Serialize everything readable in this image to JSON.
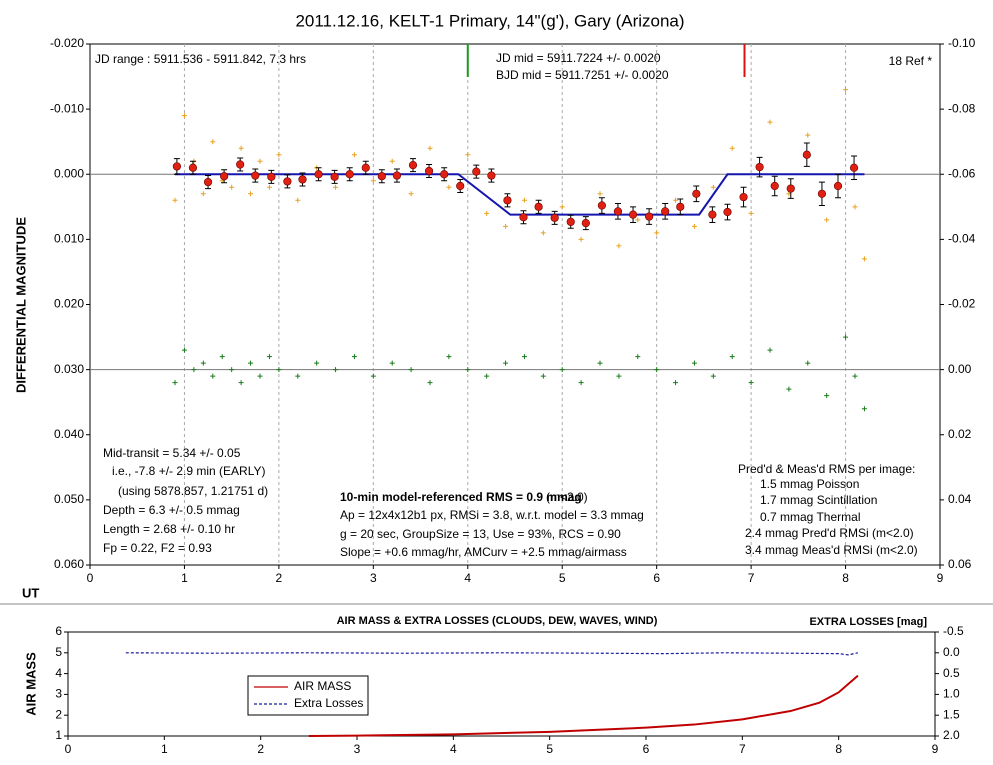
{
  "chart_data": [
    {
      "type": "scatter",
      "title": "2011.12.16, KELT-1 Primary, 14\"(g'), Gary (Arizona)",
      "ylabel": "DIFFERENTIAL MAGNITUDE",
      "xlabel": "UT",
      "xlim": [
        0,
        9
      ],
      "xticks": [
        0,
        1,
        2,
        3,
        4,
        5,
        6,
        7,
        8,
        9
      ],
      "ylim": [
        -0.02,
        0.06
      ],
      "y_inverted": true,
      "yticks": [
        {
          "value": -0.02,
          "label": "-0.020"
        },
        {
          "value": -0.01,
          "label": "-0.010"
        },
        {
          "value": 0,
          "label": "0.000"
        },
        {
          "value": 0.01,
          "label": "0.010"
        },
        {
          "value": 0.02,
          "label": "0.020"
        },
        {
          "value": 0.03,
          "label": "0.030"
        },
        {
          "value": 0.04,
          "label": "0.040"
        },
        {
          "value": 0.05,
          "label": "0.050"
        },
        {
          "value": 0.06,
          "label": "0.060"
        }
      ],
      "y2lim": [
        -0.1,
        0.06
      ],
      "y2_inverted": true,
      "y2ticks": [
        {
          "value": -0.1,
          "label": "-0.10"
        },
        {
          "value": -0.08,
          "label": "-0.08"
        },
        {
          "value": -0.06,
          "label": "-0.06"
        },
        {
          "value": -0.04,
          "label": "-0.04"
        },
        {
          "value": -0.02,
          "label": "-0.02"
        },
        {
          "value": 0,
          "label": "0.00"
        },
        {
          "value": 0.02,
          "label": "0.02"
        },
        {
          "value": 0.04,
          "label": "0.04"
        },
        {
          "value": 0.06,
          "label": "0.06"
        }
      ],
      "grid_x": true,
      "ref_lines": [
        0,
        0.03
      ],
      "markers": [
        {
          "x": 4.0,
          "color": "#1a9a1a"
        },
        {
          "x": 6.93,
          "color": "#dd1010"
        }
      ],
      "series": [
        {
          "kind": "points",
          "color": "#e8a020",
          "x": [
            0.9,
            1.0,
            1.1,
            1.2,
            1.3,
            1.4,
            1.5,
            1.6,
            1.7,
            1.8,
            1.9,
            2.0,
            2.2,
            2.4,
            2.6,
            2.8,
            3.0,
            3.2,
            3.4,
            3.6,
            3.8,
            4.0,
            4.2,
            4.4,
            4.6,
            4.8,
            5.0,
            5.2,
            5.4,
            5.6,
            5.8,
            6.0,
            6.2,
            6.4,
            6.6,
            6.8,
            7.0,
            7.2,
            7.4,
            7.6,
            7.8,
            8.0,
            8.1,
            8.2
          ],
          "values": [
            0.004,
            -0.009,
            -0.002,
            0.003,
            -0.005,
            0.001,
            0.002,
            -0.004,
            0.003,
            -0.002,
            0.002,
            -0.003,
            0.004,
            -0.001,
            0.002,
            -0.003,
            0.001,
            -0.002,
            0.003,
            -0.004,
            0.002,
            -0.003,
            0.006,
            0.008,
            0.004,
            0.009,
            0.005,
            0.01,
            0.003,
            0.011,
            0.007,
            0.009,
            0.004,
            0.008,
            0.002,
            -0.004,
            0.006,
            -0.008,
            0.003,
            -0.006,
            0.007,
            -0.013,
            0.005,
            0.013
          ]
        },
        {
          "kind": "points",
          "color": "#1a7a1a",
          "x": [
            0.9,
            1.0,
            1.1,
            1.2,
            1.3,
            1.4,
            1.5,
            1.6,
            1.7,
            1.8,
            1.9,
            2.0,
            2.2,
            2.4,
            2.6,
            2.8,
            3.0,
            3.2,
            3.4,
            3.6,
            3.8,
            4.0,
            4.2,
            4.4,
            4.6,
            4.8,
            5.0,
            5.2,
            5.4,
            5.6,
            5.8,
            6.0,
            6.2,
            6.4,
            6.6,
            6.8,
            7.0,
            7.2,
            7.4,
            7.6,
            7.8,
            8.0,
            8.1,
            8.2
          ],
          "values": [
            0.032,
            0.027,
            0.03,
            0.029,
            0.031,
            0.028,
            0.03,
            0.032,
            0.029,
            0.031,
            0.028,
            0.03,
            0.031,
            0.029,
            0.03,
            0.028,
            0.031,
            0.029,
            0.03,
            0.032,
            0.028,
            0.03,
            0.031,
            0.029,
            0.028,
            0.031,
            0.03,
            0.032,
            0.029,
            0.031,
            0.028,
            0.03,
            0.032,
            0.029,
            0.031,
            0.028,
            0.032,
            0.027,
            0.033,
            0.029,
            0.034,
            0.025,
            0.031,
            0.036
          ]
        },
        {
          "kind": "line",
          "color": "#1515b0",
          "x": [
            0.9,
            3.9,
            4.45,
            6.45,
            6.75,
            8.2
          ],
          "values": [
            0,
            0,
            0.0062,
            0.0062,
            0,
            0
          ]
        },
        {
          "kind": "binned",
          "color": "#e02010",
          "x": [
            0.92,
            1.09,
            1.25,
            1.42,
            1.59,
            1.75,
            1.92,
            2.09,
            2.25,
            2.42,
            2.59,
            2.75,
            2.92,
            3.09,
            3.25,
            3.42,
            3.59,
            3.75,
            3.92,
            4.09,
            4.25,
            4.42,
            4.59,
            4.75,
            4.92,
            5.09,
            5.25,
            5.42,
            5.59,
            5.75,
            5.92,
            6.09,
            6.25,
            6.42,
            6.59,
            6.75,
            6.92,
            7.09,
            7.25,
            7.42,
            7.59,
            7.75,
            7.92,
            8.09
          ],
          "values": [
            -0.0012,
            -0.001,
            0.0012,
            0.0003,
            -0.0015,
            0.0002,
            0.0004,
            0.0011,
            0.0008,
            0.0,
            0.0004,
            0.0,
            -0.001,
            0.0003,
            0.0002,
            -0.0014,
            -0.0005,
            0.0,
            0.0018,
            -0.0004,
            0.0002,
            0.004,
            0.0066,
            0.005,
            0.0067,
            0.0073,
            0.0075,
            0.0048,
            0.0057,
            0.0062,
            0.0065,
            0.0057,
            0.005,
            0.003,
            0.0062,
            0.0058,
            0.0035,
            -0.0011,
            0.0018,
            0.0022,
            -0.003,
            0.003,
            0.0018,
            -0.001
          ],
          "errors": [
            0.0012,
            0.001,
            0.001,
            0.001,
            0.001,
            0.001,
            0.001,
            0.001,
            0.001,
            0.001,
            0.001,
            0.001,
            0.001,
            0.001,
            0.001,
            0.001,
            0.001,
            0.001,
            0.001,
            0.001,
            0.001,
            0.001,
            0.001,
            0.001,
            0.001,
            0.001,
            0.001,
            0.0012,
            0.0012,
            0.0012,
            0.0012,
            0.0012,
            0.0012,
            0.0012,
            0.0012,
            0.0012,
            0.0015,
            0.0015,
            0.0015,
            0.0015,
            0.0018,
            0.0018,
            0.0018,
            0.0018
          ]
        }
      ],
      "annotations": [
        {
          "text": "JD range : 5911.536 - 5911.842, 7.3 hrs",
          "color": "#000000"
        },
        {
          "text": "JD mid   = 5911.7224 +/- 0.0020",
          "color": "#1a1a8c"
        },
        {
          "text": "BJD mid = 5911.7251 +/- 0.0020",
          "color": "#1a1a8c"
        },
        {
          "text": "18 Ref *",
          "color": "#000000"
        },
        {
          "text": "Mid-transit = 5.34 +/- 0.05",
          "color": "#1a1a8c"
        },
        {
          "text": "i.e., -7.8 +/- 2.9 min (EARLY)",
          "color": "#1a1a8c"
        },
        {
          "text": "(using 5878.857, 1.21751 d)",
          "color": "#1a1a8c"
        },
        {
          "text": "Depth = 6.3 +/- 0.5 mmag",
          "color": "#1a1a8c"
        },
        {
          "text": "Length = 2.68 +/- 0.10 hr",
          "color": "#1a1a8c"
        },
        {
          "text": "Fp = 0.22, F2 = 0.93",
          "color": "#1a1a8c"
        },
        {
          "text": "10-min model-referenced RMS = 0.9 mmag",
          "color": "#e01010",
          "bold": true
        },
        {
          "text": "(m<2.0)",
          "color": "#000000"
        },
        {
          "text": "Ap = 12x4x12b1 px, RMSi = 3.8, w.r.t. model = 3.3 mmag",
          "color": "#000000"
        },
        {
          "text": "g = 20 sec, GroupSize = 13, Use = 93%, RCS = 0.90",
          "color": "#000000"
        },
        {
          "text": "Slope = +0.6 mmag/hr, AMCurv = +2.5 mmag/airmass",
          "color": "#000000"
        },
        {
          "text": "Pred'd & Meas'd RMS per image:",
          "color": "#1a7a1a"
        },
        {
          "text": "1.5 mmag Poisson",
          "color": "#1a7a1a"
        },
        {
          "text": "1.7 mmag Scintillation",
          "color": "#1a7a1a"
        },
        {
          "text": "0.7 mmag Thermal",
          "color": "#1a7a1a"
        },
        {
          "text": "2.4 mmag Pred'd  RMSi (m<2.0)",
          "color": "#1a7a1a"
        },
        {
          "text": "3.4 mmag Meas'd RMSi (m<2.0)",
          "color": "#1a1a8c"
        }
      ]
    },
    {
      "type": "line",
      "title": "AIR MASS & EXTRA LOSSES (CLOUDS, DEW, WAVES, WIND)",
      "ylabel": "AIR MASS",
      "y2label": "EXTRA LOSSES [mag]",
      "xlim": [
        0,
        9
      ],
      "xticks": [
        0,
        1,
        2,
        3,
        4,
        5,
        6,
        7,
        8,
        9
      ],
      "ylim": [
        1,
        6
      ],
      "yticks": [
        1,
        2,
        3,
        4,
        5,
        6
      ],
      "y2lim": [
        -0.5,
        2.0
      ],
      "y2_inverted": true,
      "y2ticks": [
        -0.5,
        {
          "value": 0,
          "label": "0.0"
        },
        0.5,
        {
          "value": 1,
          "label": "1.0"
        },
        1.5,
        {
          "value": 2,
          "label": "2.0"
        }
      ],
      "legend": "left",
      "series": [
        {
          "name": "AIR MASS",
          "color": "#c00000",
          "x": [
            2.5,
            3,
            4,
            5,
            6,
            6.5,
            7,
            7.5,
            7.8,
            8.0,
            8.2
          ],
          "values": [
            1.0,
            1.02,
            1.08,
            1.2,
            1.4,
            1.55,
            1.8,
            2.2,
            2.6,
            3.1,
            3.9
          ]
        },
        {
          "name": "Extra Losses",
          "color": "#1a1aa0",
          "dash": true,
          "axis": "y2",
          "x": [
            0.6,
            1.5,
            2.5,
            3.5,
            4.5,
            5.5,
            6.2,
            6.8,
            7.5,
            8.0,
            8.1,
            8.2
          ],
          "values": [
            0.0,
            0.01,
            0.0,
            0.01,
            0.0,
            0.01,
            0.02,
            0.0,
            0.01,
            0.02,
            0.05,
            0.0
          ]
        }
      ]
    }
  ]
}
